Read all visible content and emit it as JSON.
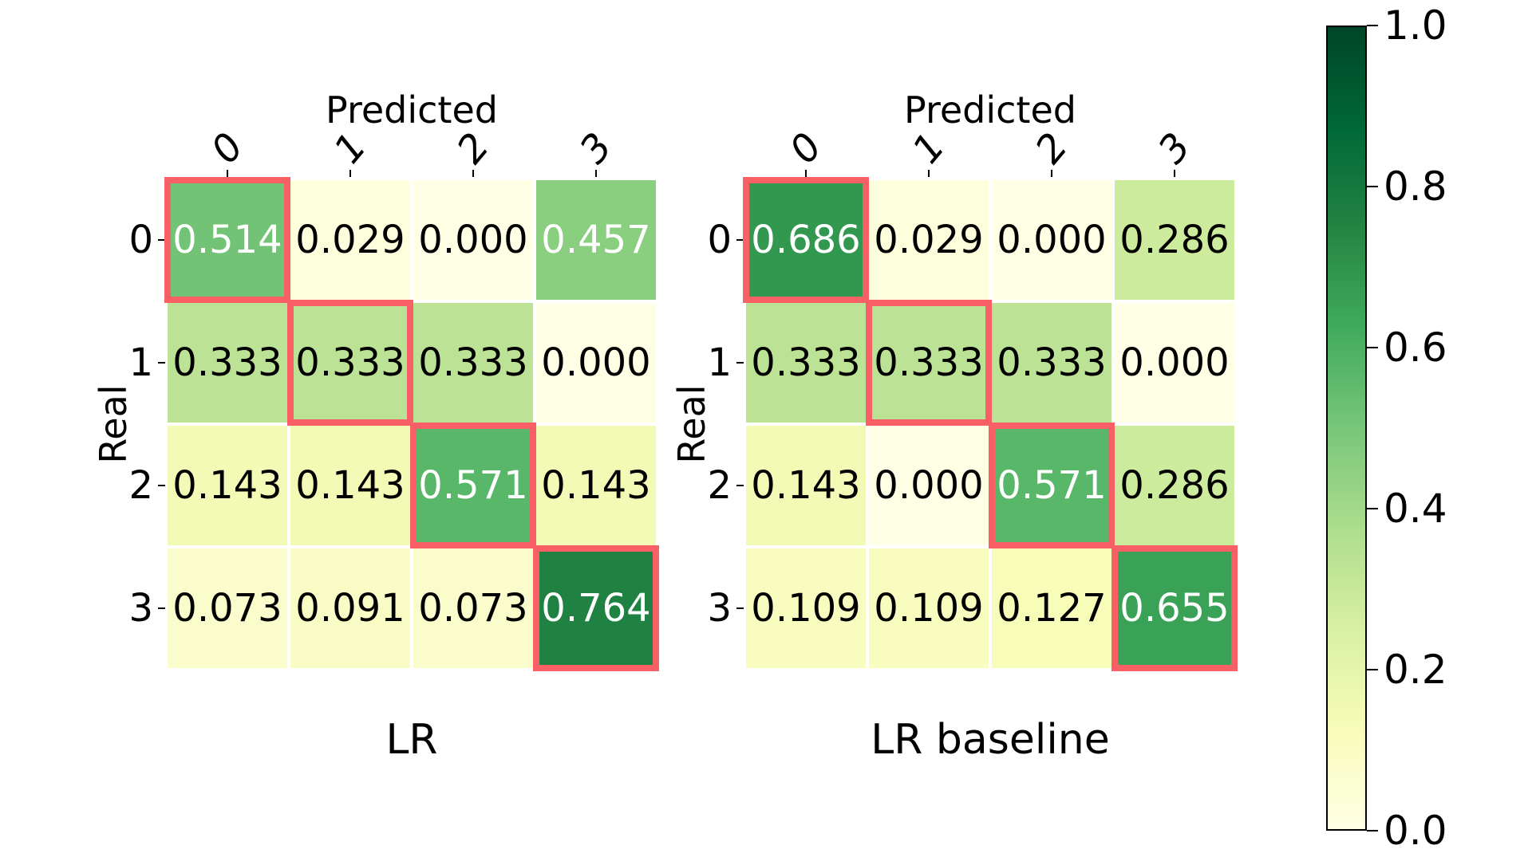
{
  "chart_data": {
    "type": "heatmap",
    "subtype": "confusion-matrix-pair",
    "x_axis_label": "Predicted",
    "y_axis_label": "Real",
    "col_labels": [
      "0",
      "1",
      "2",
      "3"
    ],
    "row_labels": [
      "0",
      "1",
      "2",
      "3"
    ],
    "matrices": [
      {
        "title": "LR",
        "rows": [
          [
            0.514,
            0.029,
            0.0,
            0.457
          ],
          [
            0.333,
            0.333,
            0.333,
            0.0
          ],
          [
            0.143,
            0.143,
            0.571,
            0.143
          ],
          [
            0.073,
            0.091,
            0.073,
            0.764
          ]
        ]
      },
      {
        "title": "LR baseline",
        "rows": [
          [
            0.686,
            0.029,
            0.0,
            0.286
          ],
          [
            0.333,
            0.333,
            0.333,
            0.0
          ],
          [
            0.143,
            0.0,
            0.571,
            0.286
          ],
          [
            0.109,
            0.109,
            0.127,
            0.655
          ]
        ]
      }
    ],
    "colormap": "YlGn",
    "color_range": [
      0.0,
      1.0
    ],
    "grid": false,
    "legend_position": "right-colorbar",
    "annotations": "diagonal cells outlined in red"
  },
  "figure": {
    "value_format_decimals": 3,
    "colorbar": {
      "tick_labels": [
        "1.0",
        "0.8",
        "0.6",
        "0.4",
        "0.2",
        "0.0"
      ],
      "gradient_stops": [
        "#ffffe5",
        "#f7fcb9",
        "#d9f0a3",
        "#addd8e",
        "#78c679",
        "#41ab5d",
        "#238443",
        "#006837",
        "#004529"
      ]
    },
    "colors": {
      "diagonal_outline": "#f96065",
      "cell_text_dark": "#000000",
      "cell_text_light": "#ffffff",
      "tick_color": "#000000",
      "background": "#ffffff"
    }
  }
}
